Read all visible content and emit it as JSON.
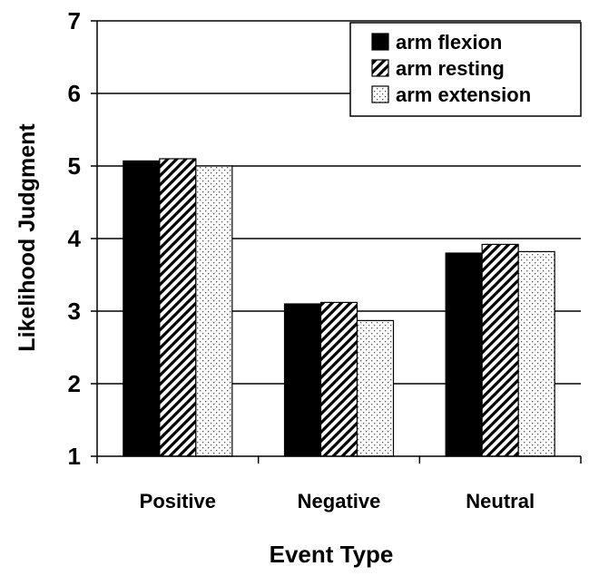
{
  "chart_data": {
    "type": "bar",
    "title": "",
    "xlabel": "Event Type",
    "ylabel": "Likelihood Judgment",
    "categories": [
      "Positive",
      "Negative",
      "Neutral"
    ],
    "ylim": [
      1,
      7
    ],
    "yticks": [
      1,
      2,
      3,
      4,
      5,
      6,
      7
    ],
    "grid": "horizontal major gridlines on",
    "legend_position": "top-right",
    "series": [
      {
        "name": "arm flexion",
        "values": [
          5.07,
          3.1,
          3.8
        ],
        "pattern": "solid",
        "color": "#000000"
      },
      {
        "name": "arm resting",
        "values": [
          5.1,
          3.12,
          3.92
        ],
        "pattern": "diagonal-stripes",
        "color": "#000000"
      },
      {
        "name": "arm extension",
        "values": [
          5.0,
          2.87,
          3.82
        ],
        "pattern": "dots",
        "color": "#000000"
      }
    ]
  }
}
